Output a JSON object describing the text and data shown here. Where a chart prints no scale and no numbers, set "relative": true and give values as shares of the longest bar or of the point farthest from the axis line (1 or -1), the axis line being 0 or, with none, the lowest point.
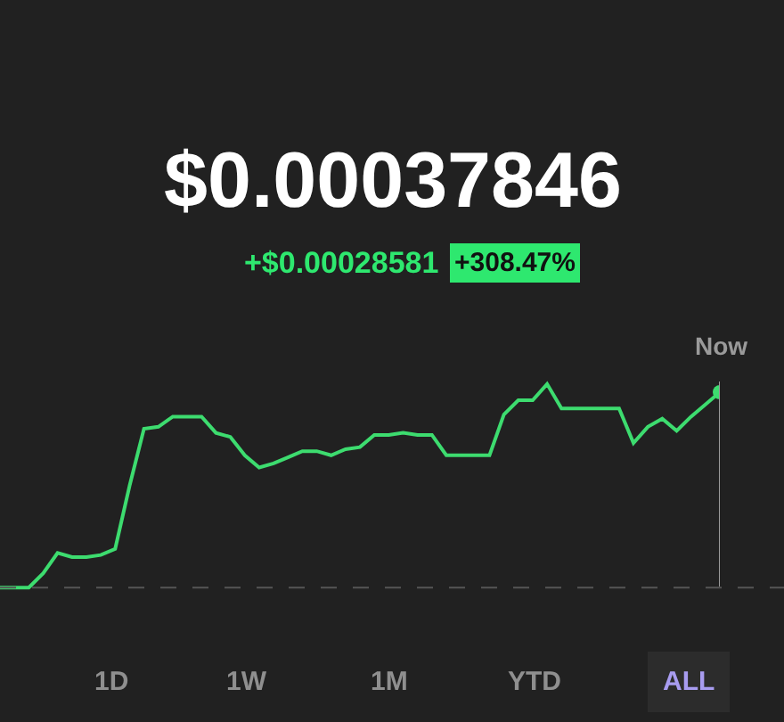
{
  "chart_data": {
    "type": "line",
    "title": "$0.00037846",
    "subtitle": "+$0.00028581",
    "annotations": [
      "+308.47%",
      "1D",
      "1W",
      "1M",
      "YTD",
      "ALL",
      "Now"
    ],
    "categories": [
      null,
      null,
      null,
      null,
      null,
      null,
      null,
      null,
      null,
      null,
      null,
      null,
      null,
      null,
      null,
      null,
      null,
      null,
      null,
      null,
      null,
      null,
      null,
      null,
      null,
      null,
      null,
      null,
      null,
      null,
      null,
      null,
      null,
      null,
      null,
      null,
      null,
      null,
      null,
      null,
      null,
      null,
      null,
      null,
      null,
      null,
      null,
      null,
      null,
      null,
      null
    ],
    "relative": true,
    "series": [
      {
        "color": "#3ddc6f",
        "values": [
          0,
          0,
          0,
          0.07,
          0.17,
          0.15,
          0.15,
          0.16,
          0.19,
          0.5,
          0.78,
          0.79,
          0.84,
          0.84,
          0.84,
          0.76,
          0.74,
          0.65,
          0.59,
          0.61,
          0.64,
          0.67,
          0.67,
          0.65,
          0.68,
          0.69,
          0.75,
          0.75,
          0.76,
          0.75,
          0.75,
          0.65,
          0.65,
          0.65,
          0.65,
          0.85,
          0.92,
          0.92,
          1,
          0.88,
          0.88,
          0.88,
          0.88,
          0.88,
          0.71,
          0.79,
          0.83,
          0.77,
          0.84,
          0.9,
          0.96
        ]
      }
    ],
    "ref_lines": [
      {
        "axis": "y",
        "value": 0,
        "color": "#555555",
        "line_style": "dashed"
      }
    ],
    "marker": "none",
    "line_style": "solid"
  }
}
